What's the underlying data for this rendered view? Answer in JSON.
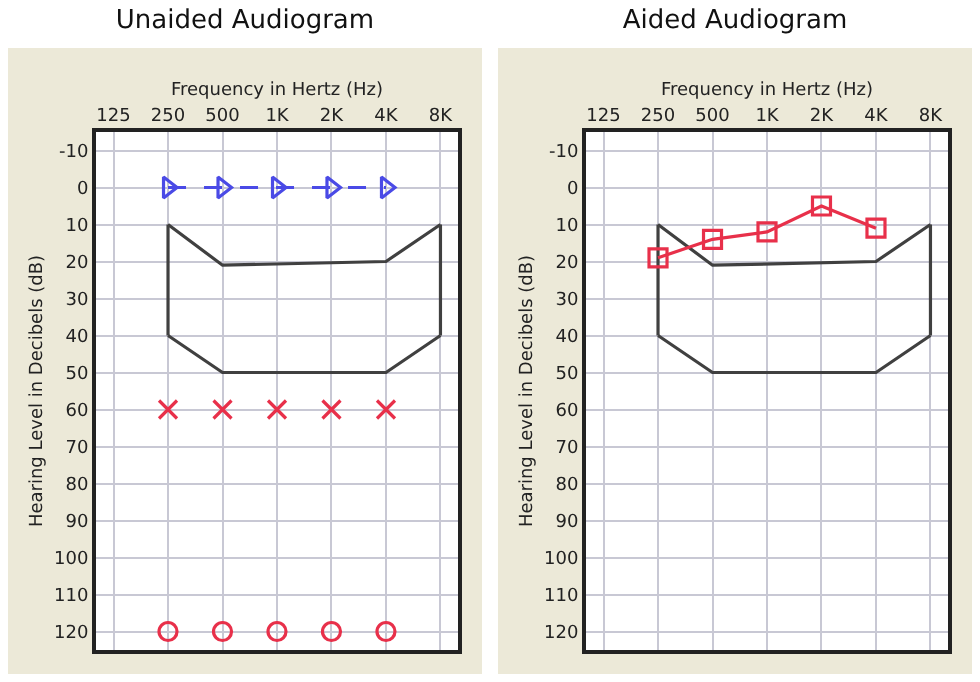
{
  "chart_data": [
    {
      "type": "line",
      "title": "Unaided Audiogram",
      "xlabel": "Frequency in Hertz (Hz)",
      "ylabel": "Hearing Level in Decibels (dB)",
      "log": "x",
      "grid": true,
      "xlim": [
        100,
        10000
      ],
      "xticks": [
        125,
        250,
        500,
        {
          "value": 1000,
          "label": "1K"
        },
        {
          "value": 2000,
          "label": "2K"
        },
        {
          "value": 4000,
          "label": "4K"
        },
        {
          "value": 8000,
          "label": "8K"
        }
      ],
      "ylim": [
        125,
        -15
      ],
      "yticks": [
        -10,
        0,
        10,
        20,
        30,
        40,
        50,
        60,
        70,
        80,
        90,
        100,
        110,
        120
      ],
      "series": [
        {
          "color": "#404040",
          "marker": "none",
          "line_style": "solid",
          "x": [
            250,
            500,
            4000,
            8000
          ],
          "values": [
            10,
            21,
            20,
            10
          ]
        },
        {
          "color": "#404040",
          "marker": "none",
          "line_style": "solid",
          "x": [
            250,
            500,
            4000,
            8000
          ],
          "values": [
            40,
            50,
            50,
            40
          ]
        },
        {
          "color": "#404040",
          "marker": "none",
          "line_style": "solid",
          "x": [
            250,
            250
          ],
          "values": [
            10,
            40
          ]
        },
        {
          "color": "#404040",
          "marker": "none",
          "line_style": "solid",
          "x": [
            8000,
            8000
          ],
          "values": [
            10,
            40
          ]
        },
        {
          "color": "#4a4ae6",
          "marker": "triangle",
          "line_style": "dashed",
          "x": [
            250,
            500,
            1000,
            2000,
            4000
          ],
          "values": [
            0,
            0,
            0,
            0,
            0
          ]
        },
        {
          "type": "scatter",
          "color": "#e8304a",
          "marker": "cross",
          "x": [
            250,
            500,
            1000,
            2000,
            4000
          ],
          "values": [
            60,
            60,
            60,
            60,
            60
          ]
        },
        {
          "type": "scatter",
          "color": "#e8304a",
          "marker": "circle",
          "x": [
            250,
            500,
            1000,
            2000,
            4000
          ],
          "values": [
            120,
            120,
            120,
            120,
            120
          ]
        }
      ]
    },
    {
      "type": "line",
      "title": "Aided Audiogram",
      "xlabel": "Frequency in Hertz (Hz)",
      "ylabel": "Hearing Level in Decibels (dB)",
      "log": "x",
      "grid": true,
      "xlim": [
        100,
        10000
      ],
      "xticks": [
        125,
        250,
        500,
        {
          "value": 1000,
          "label": "1K"
        },
        {
          "value": 2000,
          "label": "2K"
        },
        {
          "value": 4000,
          "label": "4K"
        },
        {
          "value": 8000,
          "label": "8K"
        }
      ],
      "ylim": [
        125,
        -15
      ],
      "yticks": [
        -10,
        0,
        10,
        20,
        30,
        40,
        50,
        60,
        70,
        80,
        90,
        100,
        110,
        120
      ],
      "series": [
        {
          "color": "#404040",
          "marker": "none",
          "line_style": "solid",
          "x": [
            250,
            500,
            4000,
            8000
          ],
          "values": [
            10,
            21,
            20,
            10
          ]
        },
        {
          "color": "#404040",
          "marker": "none",
          "line_style": "solid",
          "x": [
            250,
            500,
            4000,
            8000
          ],
          "values": [
            40,
            50,
            50,
            40
          ]
        },
        {
          "color": "#404040",
          "marker": "none",
          "line_style": "solid",
          "x": [
            250,
            250
          ],
          "values": [
            10,
            40
          ]
        },
        {
          "color": "#404040",
          "marker": "none",
          "line_style": "solid",
          "x": [
            8000,
            8000
          ],
          "values": [
            10,
            40
          ]
        },
        {
          "color": "#e8304a",
          "marker": "square",
          "line_style": "solid",
          "x": [
            250,
            500,
            1000,
            2000,
            4000
          ],
          "values": [
            19,
            14,
            12,
            5,
            11
          ]
        }
      ]
    }
  ]
}
